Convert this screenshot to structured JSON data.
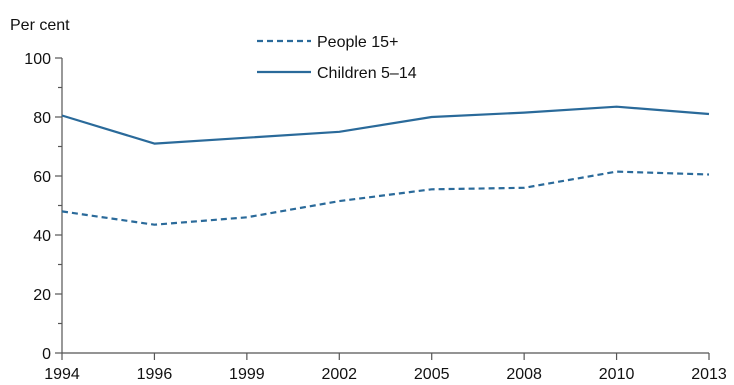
{
  "chart_data": {
    "type": "line",
    "title": "",
    "xlabel": "",
    "ylabel": "Per cent",
    "ylim": [
      0,
      100
    ],
    "yticks": [
      0,
      20,
      40,
      60,
      80,
      100
    ],
    "categories": [
      "1994",
      "1996",
      "1999",
      "2002",
      "2005",
      "2008",
      "2010",
      "2013"
    ],
    "grid": false,
    "legend_position": "top-center",
    "series": [
      {
        "name": "People 15+",
        "style": "dashed",
        "color": "#2a6a9a",
        "values": [
          48,
          43.5,
          46,
          51.5,
          55.5,
          56,
          61.5,
          60.5
        ]
      },
      {
        "name": "Children 5–14",
        "style": "solid",
        "color": "#2a6a9a",
        "values": [
          80.5,
          71,
          73,
          75,
          80,
          81.5,
          83.5,
          81
        ]
      }
    ]
  }
}
